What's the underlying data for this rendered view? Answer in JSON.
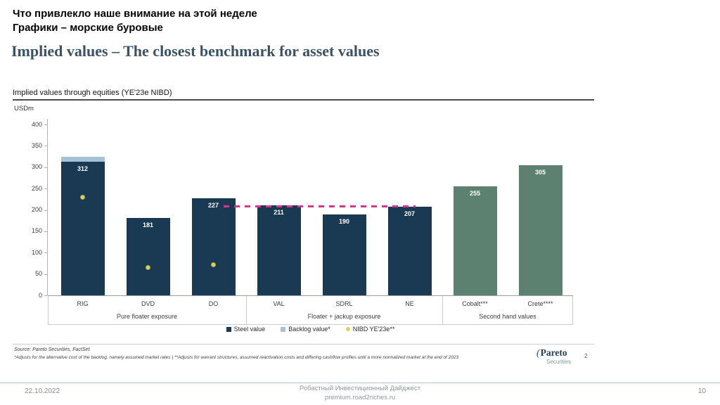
{
  "slide": {
    "top_note_line1": "Что привлекло наше внимание на этой неделе",
    "top_note_line2": "Графики – морские буровые",
    "title": "Implied values – The closest benchmark for asset values"
  },
  "chart_data": {
    "type": "bar",
    "title": "Implied values through equities (YE'23e NIBD)",
    "ylabel": "USDm",
    "ylim": [
      0,
      400
    ],
    "ytick_step": 50,
    "grid": false,
    "legend_position": "bottom",
    "categories": [
      "RIG",
      "DVD",
      "DO",
      "VAL",
      "SDRL",
      "NE",
      "Cobalt***",
      "Crete****"
    ],
    "series": [
      {
        "name": "Steel value",
        "type": "bar",
        "values": [
          312,
          181,
          227,
          211,
          190,
          207,
          255,
          305
        ]
      },
      {
        "name": "Backlog value*",
        "type": "bar-stacked",
        "values": [
          12,
          0,
          0,
          0,
          0,
          0,
          0,
          0
        ]
      },
      {
        "name": "NIBD YE'23e**",
        "type": "point",
        "values": [
          230,
          65,
          72,
          null,
          null,
          null,
          null,
          null
        ]
      }
    ],
    "bar_color_keys": [
      "steel",
      "steel",
      "steel",
      "steel",
      "steel",
      "steel",
      "secondhand",
      "secondhand"
    ],
    "colors": {
      "steel": "#1a3a54",
      "backlog": "#a4c2d8",
      "nibd": "#d6d460",
      "nibd_border": "#a9a84b",
      "secondhand": "#5c8170",
      "refline": "#d6368e"
    },
    "groups": [
      {
        "label": "Pure floater exposure",
        "from": 0,
        "to": 2
      },
      {
        "label": "Floater + jackup exposure",
        "from": 3,
        "to": 5
      },
      {
        "label": "Second hand values",
        "from": 6,
        "to": 7
      }
    ],
    "reference_line": {
      "value": 207,
      "from_index": 2,
      "to_index": 5,
      "style": "dashed"
    },
    "legend": [
      {
        "label": "Steel value",
        "marker": "square",
        "color_key": "steel"
      },
      {
        "label": "Backlog value*",
        "marker": "square",
        "color_key": "backlog"
      },
      {
        "label": "NIBD YE'23e**",
        "marker": "dot",
        "color_key": "nibd"
      }
    ]
  },
  "footnotes": {
    "source": "Source: Pareto Securities, FactSet",
    "note": "*Adjusts for the alternative cost of the backlog, namely assumed market rates | **Adjusts for warrant structures, assumed reactivation costs and differing cashflow profiles until a more normalized market at the end of 2023"
  },
  "branding": {
    "mark": "(",
    "name": "Pareto",
    "sub": "Securities",
    "page": "2"
  },
  "footer": {
    "date": "22.10.2022",
    "center_line1": "Робастный Инвестиционный Дайджест",
    "center_line2": "premium.road2riches.ru",
    "page": "10"
  }
}
